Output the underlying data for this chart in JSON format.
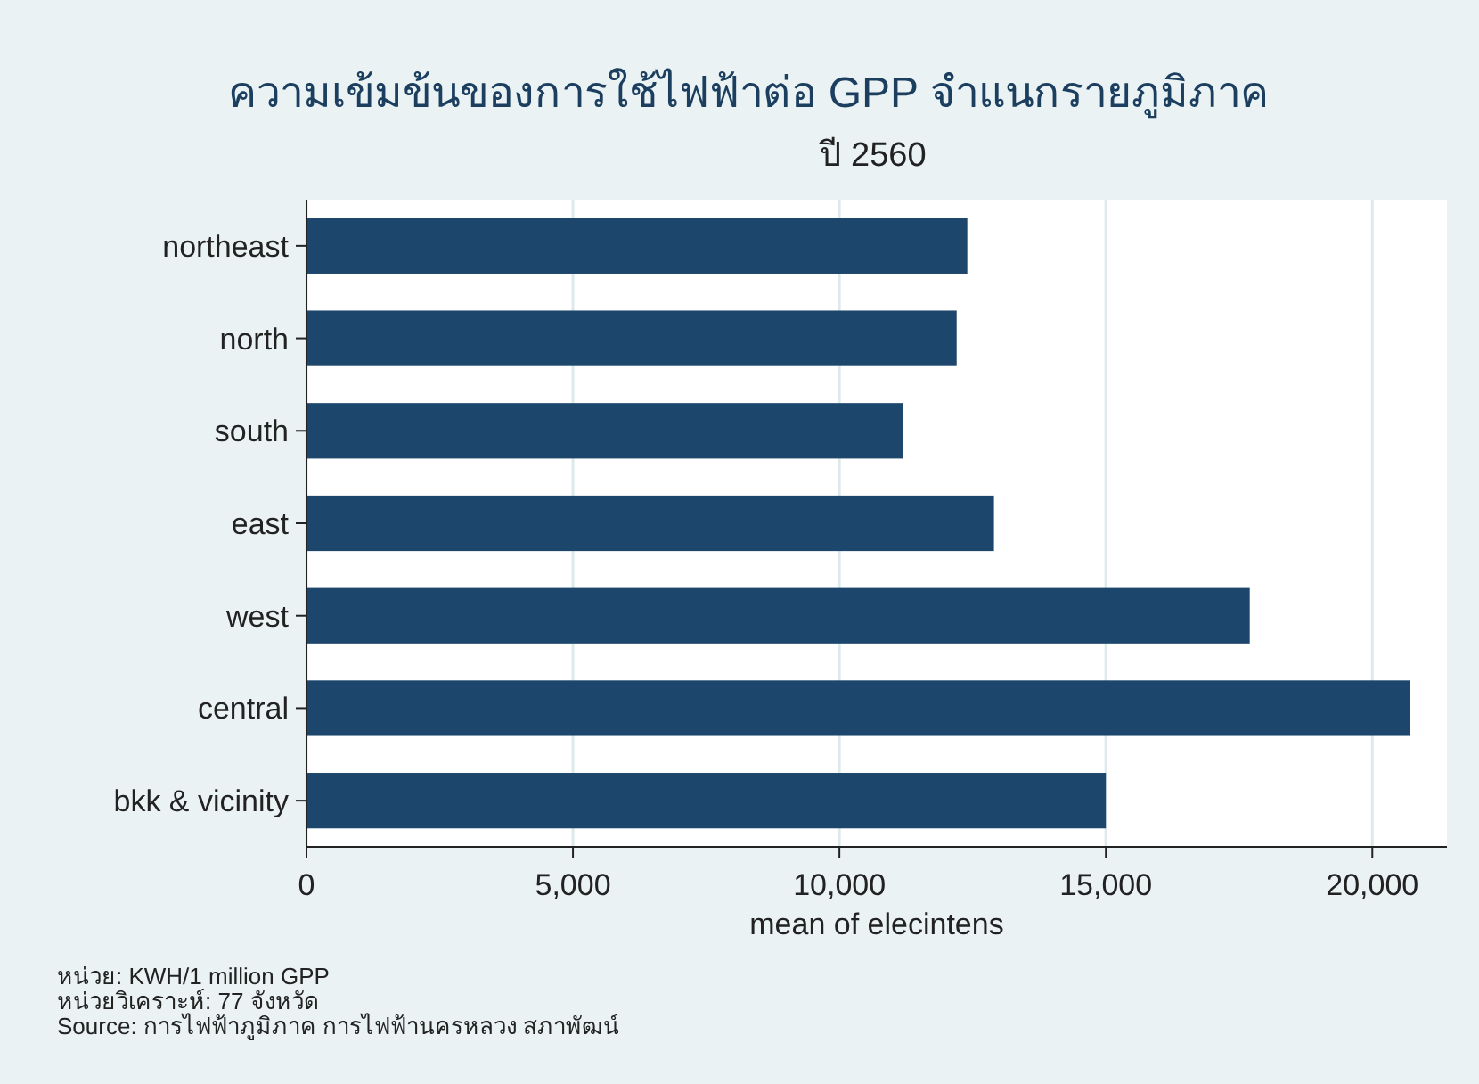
{
  "chart_data": {
    "type": "bar",
    "orientation": "horizontal",
    "title": "ความเข้มข้นของการใช้ไฟฟ้าต่อ GPP จำแนกรายภูมิภาค",
    "subtitle": "ปี 2560",
    "xlabel": "mean of elecintens",
    "categories": [
      "northeast",
      "north",
      "south",
      "east",
      "west",
      "central",
      "bkk & vicinity"
    ],
    "values": [
      12400,
      12200,
      11200,
      12900,
      17700,
      20700,
      15000
    ],
    "color": "#1c466c",
    "xlim": [
      0,
      21400
    ],
    "xticks": [
      0,
      {
        "value": 5000,
        "label": "5,000"
      },
      {
        "value": 10000,
        "label": "10,000"
      },
      {
        "value": 15000,
        "label": "15,000"
      },
      {
        "value": 20000,
        "label": "20,000"
      }
    ],
    "grid": "x",
    "annotations": [
      "หน่วย: KWH/1 million GPP",
      "หน่วยวิเคราะห์: 77 จังหวัด",
      "Source: การไฟฟ้าภูมิภาค การไฟฟ้านครหลวง สภาพัฒน์"
    ]
  }
}
